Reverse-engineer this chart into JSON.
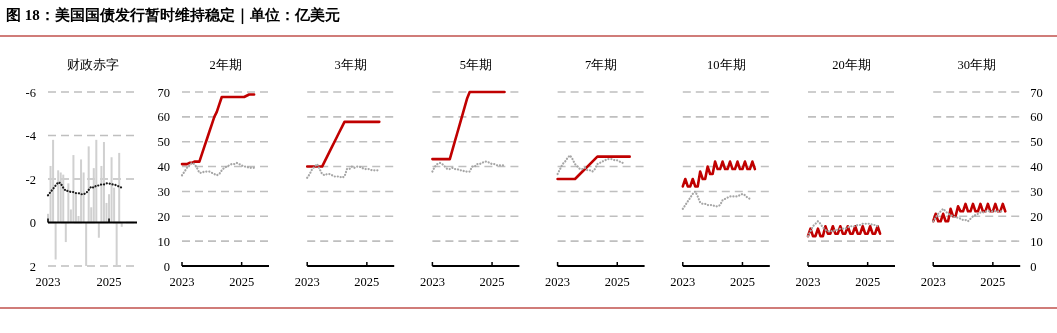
{
  "chart_data": [
    {
      "type": "bar",
      "title": "图 18：美国国债发行暂时维持稳定｜单位：亿美元",
      "subtitle": "财政赤字",
      "x": [
        "2023-01",
        "2023-02",
        "2023-03",
        "2023-04",
        "2023-05",
        "2023-06",
        "2023-07",
        "2023-08",
        "2023-09",
        "2023-10",
        "2023-11",
        "2023-12",
        "2024-01",
        "2024-02",
        "2024-03",
        "2024-04",
        "2024-05",
        "2024-06",
        "2024-07",
        "2024-08",
        "2024-09",
        "2024-10",
        "2024-11",
        "2024-12",
        "2025-01",
        "2025-02",
        "2025-03",
        "2025-04",
        "2025-05",
        "2025-06"
      ],
      "xlim": [
        "2023-01",
        "2025-12"
      ],
      "xticks": [
        "2023",
        "2025"
      ],
      "ylim": [
        2,
        -6
      ],
      "yticks": [
        -6,
        -4,
        -2,
        0,
        2
      ],
      "grid": "y",
      "series": [
        {
          "color": "#d0d0d0",
          "values": [
            -0.4,
            -2.6,
            -3.8,
            1.7,
            -2.4,
            -2.3,
            -2.2,
            0.9,
            -1.8,
            -0.6,
            -3.1,
            -1.3,
            -0.3,
            -2.9,
            -2.3,
            2,
            -3.5,
            -0.7,
            -2.5,
            -3.8,
            0.7,
            -2.6,
            -3.7,
            -0.9,
            -1.3,
            -3,
            -1.6,
            2,
            -3.2,
            0.2
          ]
        },
        {
          "type": "line",
          "line_style": "dotted",
          "color": "#1a1a1a",
          "values": [
            -1.25,
            -1.4,
            -1.55,
            -1.7,
            -1.85,
            -1.8,
            -1.6,
            -1.45,
            -1.45,
            -1.4,
            -1.4,
            -1.35,
            -1.35,
            -1.3,
            -1.3,
            -1.35,
            -1.5,
            -1.65,
            -1.6,
            -1.7,
            -1.7,
            -1.75,
            -1.75,
            -1.8,
            -1.8,
            -1.75,
            -1.75,
            -1.7,
            -1.65,
            -1.6
          ]
        }
      ]
    },
    {
      "type": "line",
      "title": "2年期",
      "x": [
        "2023-01",
        "2023-02",
        "2023-03",
        "2023-04",
        "2023-05",
        "2023-06",
        "2023-07",
        "2023-08",
        "2023-09",
        "2023-10",
        "2023-11",
        "2023-12",
        "2024-01",
        "2024-02",
        "2024-03",
        "2024-04",
        "2024-05",
        "2024-06",
        "2024-07",
        "2024-08",
        "2024-09",
        "2024-10",
        "2024-11",
        "2024-12",
        "2025-01",
        "2025-02",
        "2025-03",
        "2025-04",
        "2025-05",
        "2025-06"
      ],
      "xlim": [
        "2023-01",
        "2025-12"
      ],
      "xticks": [
        "2023",
        "2025"
      ],
      "ylim": [
        0,
        70
      ],
      "yticks": [
        0,
        10,
        20,
        30,
        40,
        50,
        60,
        70
      ],
      "grid": "y",
      "series": [
        {
          "color": "#c00000",
          "values": [
            41,
            41,
            41,
            41.5,
            41.5,
            42,
            42,
            42,
            45,
            48,
            51,
            54,
            57,
            60,
            62,
            65,
            68,
            68,
            68,
            68,
            68,
            68,
            68,
            68,
            68,
            68,
            68.5,
            69,
            69,
            69
          ]
        },
        {
          "color": "#a6a6a6",
          "line_style": "dotted",
          "values": [
            36.5,
            38,
            39.5,
            40.5,
            41.5,
            41,
            39.5,
            37.5,
            37.5,
            38,
            38,
            38,
            37.5,
            37,
            36.5,
            37,
            38.5,
            39.5,
            40,
            40.5,
            41,
            41,
            41.5,
            41,
            40.5,
            40,
            40,
            39.5,
            39.5,
            39.5
          ]
        }
      ]
    },
    {
      "type": "line",
      "title": "3年期",
      "tick_labels": "x",
      "x": [
        "2023-01",
        "2023-02",
        "2023-03",
        "2023-04",
        "2023-05",
        "2023-06",
        "2023-07",
        "2023-08",
        "2023-09",
        "2023-10",
        "2023-11",
        "2023-12",
        "2024-01",
        "2024-02",
        "2024-03",
        "2024-04",
        "2024-05",
        "2024-06",
        "2024-07",
        "2024-08",
        "2024-09",
        "2024-10",
        "2024-11",
        "2024-12",
        "2025-01",
        "2025-02",
        "2025-03",
        "2025-04",
        "2025-05",
        "2025-06"
      ],
      "xlim": [
        "2023-01",
        "2025-12"
      ],
      "xticks": [
        "2023",
        "2025"
      ],
      "ylim": [
        0,
        70
      ],
      "yticks": [
        0,
        10,
        20,
        30,
        40,
        50,
        60,
        70
      ],
      "grid": "y",
      "series": [
        {
          "color": "#c00000",
          "values": [
            40,
            40,
            40,
            40,
            40,
            40,
            40,
            42,
            44,
            46,
            48,
            50,
            52,
            54,
            56,
            58,
            58,
            58,
            58,
            58,
            58,
            58,
            58,
            58,
            58,
            58,
            58,
            58,
            58,
            58
          ]
        },
        {
          "color": "#a6a6a6",
          "line_style": "dotted",
          "values": [
            35.5,
            37,
            39,
            40,
            41,
            39,
            37,
            36.5,
            37,
            37,
            36.5,
            36,
            36,
            36,
            35.5,
            36,
            39,
            39,
            40,
            39.5,
            40,
            40,
            39.5,
            39,
            39,
            39,
            38.5,
            38.5,
            38.5,
            38.5
          ]
        }
      ]
    },
    {
      "type": "line",
      "title": "5年期",
      "tick_labels": "x",
      "x": [
        "2023-01",
        "2023-02",
        "2023-03",
        "2023-04",
        "2023-05",
        "2023-06",
        "2023-07",
        "2023-08",
        "2023-09",
        "2023-10",
        "2023-11",
        "2023-12",
        "2024-01",
        "2024-02",
        "2024-03",
        "2024-04",
        "2024-05",
        "2024-06",
        "2024-07",
        "2024-08",
        "2024-09",
        "2024-10",
        "2024-11",
        "2024-12",
        "2025-01",
        "2025-02",
        "2025-03",
        "2025-04",
        "2025-05",
        "2025-06"
      ],
      "xlim": [
        "2023-01",
        "2025-12"
      ],
      "xticks": [
        "2023",
        "2025"
      ],
      "ylim": [
        0,
        70
      ],
      "yticks": [
        0,
        10,
        20,
        30,
        40,
        50,
        60,
        70
      ],
      "grid": "y",
      "series": [
        {
          "color": "#c00000",
          "values": [
            43,
            43,
            43,
            43,
            43,
            43,
            43,
            43,
            46.5,
            50,
            53.5,
            57,
            60.5,
            64,
            67.5,
            70,
            70,
            70,
            70,
            70,
            70,
            70,
            70,
            70,
            70,
            70,
            70,
            70,
            70,
            70
          ]
        },
        {
          "color": "#a6a6a6",
          "line_style": "dotted",
          "values": [
            38,
            40,
            41,
            41.5,
            41,
            40,
            39,
            39,
            39.5,
            39,
            39,
            38.5,
            38.5,
            38,
            38,
            38,
            40,
            40,
            41,
            41,
            41.5,
            42,
            42,
            41.5,
            41,
            41,
            40.5,
            40.5,
            40.5,
            40.5
          ]
        }
      ]
    },
    {
      "type": "line",
      "title": "7年期",
      "tick_labels": "x",
      "x": [
        "2023-01",
        "2023-02",
        "2023-03",
        "2023-04",
        "2023-05",
        "2023-06",
        "2023-07",
        "2023-08",
        "2023-09",
        "2023-10",
        "2023-11",
        "2023-12",
        "2024-01",
        "2024-02",
        "2024-03",
        "2024-04",
        "2024-05",
        "2024-06",
        "2024-07",
        "2024-08",
        "2024-09",
        "2024-10",
        "2024-11",
        "2024-12",
        "2025-01",
        "2025-02",
        "2025-03",
        "2025-04",
        "2025-05",
        "2025-06"
      ],
      "xlim": [
        "2023-01",
        "2025-12"
      ],
      "xticks": [
        "2023",
        "2025"
      ],
      "ylim": [
        0,
        70
      ],
      "yticks": [
        0,
        10,
        20,
        30,
        40,
        50,
        60,
        70
      ],
      "grid": "y",
      "series": [
        {
          "color": "#c00000",
          "values": [
            35,
            35,
            35,
            35,
            35,
            35,
            35,
            35,
            36,
            37,
            38,
            39,
            40,
            41,
            42,
            43,
            44,
            44,
            44,
            44,
            44,
            44,
            44,
            44,
            44,
            44,
            44,
            44,
            44,
            44
          ]
        },
        {
          "color": "#a6a6a6",
          "line_style": "dotted",
          "values": [
            37,
            39,
            41,
            42,
            43.5,
            44.5,
            43,
            41,
            40,
            39,
            39,
            39.5,
            38.5,
            38.5,
            38,
            39,
            41,
            41.5,
            42,
            42.5,
            43,
            43,
            43,
            42.5,
            42.5,
            42,
            41.5,
            41.5,
            null,
            null
          ]
        }
      ]
    },
    {
      "type": "line",
      "title": "10年期",
      "tick_labels": "x",
      "x": [
        "2023-01",
        "2023-02",
        "2023-03",
        "2023-04",
        "2023-05",
        "2023-06",
        "2023-07",
        "2023-08",
        "2023-09",
        "2023-10",
        "2023-11",
        "2023-12",
        "2024-01",
        "2024-02",
        "2024-03",
        "2024-04",
        "2024-05",
        "2024-06",
        "2024-07",
        "2024-08",
        "2024-09",
        "2024-10",
        "2024-11",
        "2024-12",
        "2025-01",
        "2025-02",
        "2025-03",
        "2025-04",
        "2025-05",
        "2025-06"
      ],
      "xlim": [
        "2023-01",
        "2025-12"
      ],
      "xticks": [
        "2023",
        "2025"
      ],
      "ylim": [
        0,
        70
      ],
      "yticks": [
        0,
        10,
        20,
        30,
        40,
        50,
        60,
        70
      ],
      "grid": "y",
      "series": [
        {
          "color": "#c00000",
          "values": [
            32,
            35,
            32,
            32,
            35,
            32,
            32,
            38,
            35,
            35,
            40,
            37,
            37,
            42,
            39,
            39,
            42,
            39,
            39,
            42,
            39,
            39,
            42,
            39,
            39,
            42,
            39,
            39,
            42,
            39
          ]
        },
        {
          "color": "#a6a6a6",
          "line_style": "dotted",
          "values": [
            23,
            24.5,
            26,
            27.5,
            29,
            30,
            28,
            25.5,
            25,
            25,
            24.5,
            24.5,
            24.5,
            24,
            24,
            24.5,
            26.5,
            27,
            27.5,
            28,
            28,
            28,
            28,
            28.5,
            29,
            28.5,
            27.5,
            27,
            null,
            null
          ]
        }
      ]
    },
    {
      "type": "line",
      "title": "20年期",
      "tick_labels": "x",
      "x": [
        "2023-01",
        "2023-02",
        "2023-03",
        "2023-04",
        "2023-05",
        "2023-06",
        "2023-07",
        "2023-08",
        "2023-09",
        "2023-10",
        "2023-11",
        "2023-12",
        "2024-01",
        "2024-02",
        "2024-03",
        "2024-04",
        "2024-05",
        "2024-06",
        "2024-07",
        "2024-08",
        "2024-09",
        "2024-10",
        "2024-11",
        "2024-12",
        "2025-01",
        "2025-02",
        "2025-03",
        "2025-04",
        "2025-05",
        "2025-06"
      ],
      "xlim": [
        "2023-01",
        "2025-12"
      ],
      "xticks": [
        "2023",
        "2025"
      ],
      "ylim": [
        0,
        70
      ],
      "yticks": [
        0,
        10,
        20,
        30,
        40,
        50,
        60,
        70
      ],
      "grid": "y",
      "series": [
        {
          "color": "#c00000",
          "values": [
            12,
            15,
            12,
            12,
            15,
            12,
            12,
            16,
            13,
            13,
            16,
            13,
            13,
            16,
            13,
            13,
            16,
            13,
            13,
            16,
            13,
            13,
            16,
            13,
            13,
            16,
            13,
            13,
            16,
            13
          ]
        },
        {
          "color": "#a6a6a6",
          "line_style": "dotted",
          "values": [
            12,
            14,
            16,
            17,
            18,
            17,
            15.5,
            14.5,
            14,
            14,
            14,
            14.5,
            14.5,
            15,
            15,
            15,
            15.5,
            16,
            16,
            16,
            16.5,
            16.5,
            17,
            17,
            17,
            17,
            16.5,
            16.5,
            16,
            null
          ]
        }
      ]
    },
    {
      "type": "line",
      "title": "30年期",
      "x": [
        "2023-01",
        "2023-02",
        "2023-03",
        "2023-04",
        "2023-05",
        "2023-06",
        "2023-07",
        "2023-08",
        "2023-09",
        "2023-10",
        "2023-11",
        "2023-12",
        "2024-01",
        "2024-02",
        "2024-03",
        "2024-04",
        "2024-05",
        "2024-06",
        "2024-07",
        "2024-08",
        "2024-09",
        "2024-10",
        "2024-11",
        "2024-12",
        "2025-01",
        "2025-02",
        "2025-03",
        "2025-04",
        "2025-05",
        "2025-06"
      ],
      "xlim": [
        "2023-01",
        "2025-12"
      ],
      "xticks": [
        "2023",
        "2025"
      ],
      "y2lim": [
        0,
        70
      ],
      "y2ticks": [
        0,
        10,
        20,
        30,
        40,
        50,
        60,
        70
      ],
      "grid": "y",
      "series": [
        {
          "axis": "y2",
          "color": "#c00000",
          "values": [
            18,
            21,
            18,
            18,
            21,
            18,
            18,
            23,
            20,
            20,
            24,
            22,
            22,
            25,
            22,
            22,
            25,
            22,
            22,
            25,
            22,
            22,
            25,
            22,
            22,
            25,
            22,
            22,
            25,
            22
          ]
        },
        {
          "axis": "y2",
          "color": "#a6a6a6",
          "line_style": "dotted",
          "values": [
            18,
            19.5,
            21,
            22,
            23,
            22,
            21,
            20.5,
            20,
            19.5,
            19.5,
            19,
            18.5,
            18.5,
            18,
            19,
            20,
            20.5,
            21,
            21.5,
            21.5,
            22,
            22,
            22,
            22,
            22,
            22,
            22,
            22,
            null
          ]
        }
      ]
    }
  ]
}
